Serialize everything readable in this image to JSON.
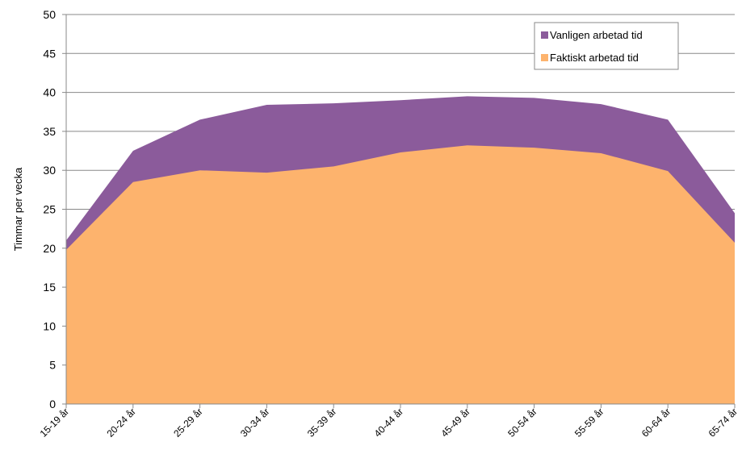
{
  "chart_data": {
    "type": "area",
    "y_label": "Timmar per vecka",
    "categories": [
      "15-19 år",
      "20-24 år",
      "25-29 år",
      "30-34 år",
      "35-39 år",
      "40-44 år",
      "45-49 år",
      "50-54 år",
      "55-59 år",
      "60-64 år",
      "65-74 år"
    ],
    "series": [
      {
        "name": "Vanligen arbetad tid",
        "color": "#8b5b9b",
        "values": [
          21,
          32.5,
          36.5,
          38.4,
          38.6,
          39,
          39.5,
          39.3,
          38.5,
          36.5,
          24.5
        ]
      },
      {
        "name": "Faktiskt arbetad tid",
        "color": "#fdb36d",
        "values": [
          19.8,
          28.5,
          30,
          29.7,
          30.5,
          32.3,
          33.2,
          32.9,
          32.2,
          29.9,
          20.7
        ]
      }
    ],
    "ylim": [
      0,
      50
    ],
    "yticks": [
      0,
      5,
      10,
      15,
      20,
      25,
      30,
      35,
      40,
      45,
      50
    ],
    "grid": true,
    "legend": "top-right"
  }
}
